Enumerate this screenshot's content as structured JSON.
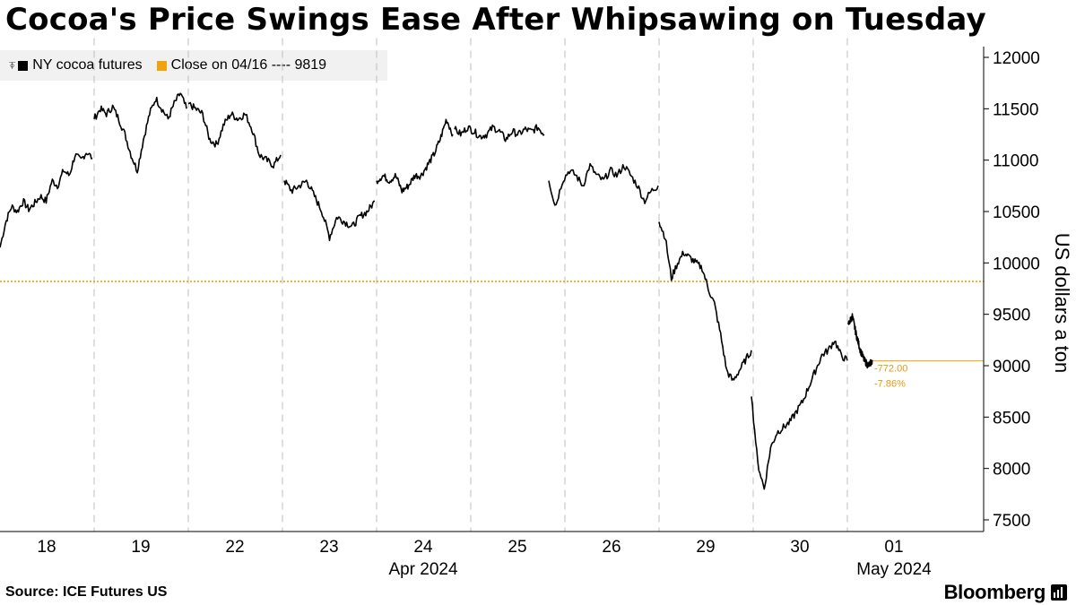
{
  "title": "Cocoa's Price Swings Ease After Whipsawing on Tuesday",
  "legend": {
    "series_label": "NY cocoa futures",
    "ref_label": "Close on 04/16 ---- 9819"
  },
  "source": "Source: ICE Futures US",
  "brand": "Bloomberg",
  "colors": {
    "series": "#000000",
    "reference": "#f0a30a",
    "grid": "#bdbdbd",
    "annotation": "#e29a14"
  },
  "chart_data": {
    "type": "line",
    "title": "Cocoa's Price Swings Ease After Whipsawing on Tuesday",
    "ylabel": "US dollars a ton",
    "ylim": [
      7400,
      12100
    ],
    "yticks": [
      7500,
      8000,
      8500,
      9000,
      9500,
      10000,
      10500,
      11000,
      11500,
      12000
    ],
    "y_axis_position": "right",
    "grid": "vertical dashed at day boundaries",
    "legend_position": "top-left",
    "x_labels": [
      "18",
      "19",
      "22",
      "23",
      "24",
      "25",
      "26",
      "29",
      "30",
      "01"
    ],
    "month_labels": [
      {
        "label": "Apr 2024",
        "under_day": "24"
      },
      {
        "label": "May 2024",
        "under_day": "01"
      }
    ],
    "reference_line": {
      "label": "Close on 04/16",
      "value": 9819
    },
    "last_value_line": 9047,
    "annotations": {
      "change": "-772.00",
      "change_pct": "-7.86%"
    },
    "series": [
      {
        "name": "NY cocoa futures",
        "days": [
          {
            "day": "18",
            "values": [
              10150,
              10400,
              10550,
              10500,
              10600,
              10520,
              10580,
              10650,
              10600,
              10800,
              10750,
              10900,
              10850,
              11050,
              11000,
              11080,
              11020
            ]
          },
          {
            "day": "19",
            "values": [
              11400,
              11500,
              11450,
              11520,
              11400,
              11250,
              11050,
              10900,
              11200,
              11450,
              11600,
              11500,
              11400,
              11550,
              11650,
              11500
            ]
          },
          {
            "day": "22",
            "values": [
              11550,
              11500,
              11450,
              11200,
              11150,
              11350,
              11450,
              11400,
              11450,
              11300,
              11050,
              11000,
              10950,
              11050
            ]
          },
          {
            "day": "23",
            "values": [
              10800,
              10700,
              10750,
              10800,
              10650,
              10500,
              10250,
              10450,
              10400,
              10350,
              10450,
              10500,
              10600
            ]
          },
          {
            "day": "24",
            "values": [
              10800,
              10850,
              10800,
              10850,
              10700,
              10750,
              10850,
              10850,
              10950,
              11050,
              11200,
              11400,
              11250
            ]
          },
          {
            "day": "25",
            "values": [
              11300,
              11250,
              11320,
              11280,
              11230,
              11250,
              11320,
              11280,
              11200,
              11280,
              11250,
              11300,
              11280,
              11320,
              11250
            ]
          },
          {
            "day": "26",
            "values": [
              10800,
              10550,
              10800,
              10900,
              10850,
              10750,
              10950,
              10850,
              10800,
              10900,
              10850,
              10950,
              10850,
              10750,
              10600,
              10700,
              10750
            ]
          },
          {
            "day": "29",
            "values": [
              10400,
              10250,
              9850,
              10000,
              10100,
              10050,
              10000,
              9950,
              9750,
              9600,
              9300,
              8950,
              8850,
              8950,
              9050,
              9150
            ]
          },
          {
            "day": "30",
            "values": [
              8700,
              8050,
              7800,
              8200,
              8350,
              8400,
              8450,
              8550,
              8650,
              8800,
              8950,
              9100,
              9150,
              9250,
              9100,
              9050
            ]
          },
          {
            "day": "01",
            "values": [
              9400,
              9480,
              9300,
              9150,
              9050,
              9000,
              9047
            ]
          }
        ]
      }
    ]
  }
}
